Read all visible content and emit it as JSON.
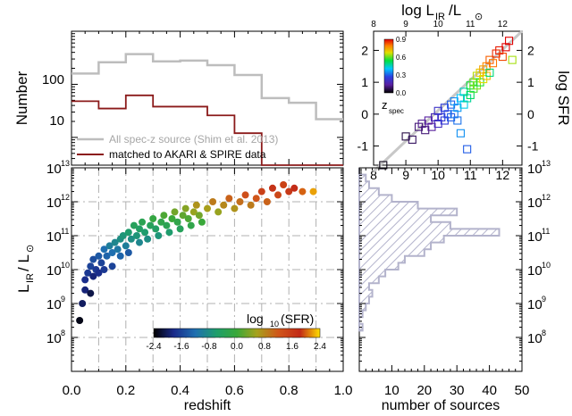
{
  "chart_data": [
    {
      "type": "histogram",
      "panel": "top-left",
      "ylabel": "Number",
      "y_scale": "log",
      "ylim": [
        3,
        1000
      ],
      "xlim": [
        0.0,
        1.0
      ],
      "y_ticks": [
        "100",
        "10"
      ],
      "bin_edges": [
        0.0,
        0.1,
        0.2,
        0.3,
        0.4,
        0.5,
        0.6,
        0.7,
        0.8,
        0.9,
        1.0
      ],
      "series": [
        {
          "name": "All spec-z source (Shim et al. 2013)",
          "color": "#bdbdbd",
          "values": [
            160,
            260,
            370,
            270,
            280,
            230,
            150,
            55,
            45,
            22
          ]
        },
        {
          "name": "matched to AKARI & SPIRE data",
          "color": "#8b1a1a",
          "values": [
            48,
            35,
            62,
            38,
            38,
            26,
            12,
            3,
            3,
            3
          ]
        }
      ],
      "legend_position": "bottom-left"
    },
    {
      "type": "scatter",
      "panel": "top-right",
      "xlabel": "log L",
      "xlabel_sub": "IR",
      "xlabel_tail": "/L",
      "xlabel_symbol": "⊙",
      "ylabel": "log SFR",
      "xlim": [
        8.0,
        12.6
      ],
      "ylim": [
        -1.6,
        2.6
      ],
      "x_ticks_top": [
        "8",
        "9",
        "10",
        "11",
        "12"
      ],
      "x_ticks_bottom": [
        "8",
        "9",
        "10",
        "11",
        "12"
      ],
      "y_ticks": [
        "2",
        "1",
        "0",
        "-1"
      ],
      "colorbar": {
        "label": "z",
        "label_sub": "spec",
        "ticks": [
          "0.9",
          "0.6",
          "0.3",
          "0.0"
        ],
        "range": [
          0.0,
          0.9
        ]
      },
      "one_to_one_line": true,
      "marker": "open-square",
      "points": [
        [
          8.3,
          -1.6,
          0.02
        ],
        [
          9.0,
          -0.7,
          0.06
        ],
        [
          9.2,
          -0.8,
          0.08
        ],
        [
          9.4,
          -0.4,
          0.1
        ],
        [
          9.5,
          -0.3,
          0.12
        ],
        [
          9.6,
          -0.5,
          0.1
        ],
        [
          9.7,
          -0.2,
          0.14
        ],
        [
          9.8,
          -0.4,
          0.13
        ],
        [
          9.9,
          -0.1,
          0.18
        ],
        [
          10.0,
          -0.3,
          0.2
        ],
        [
          10.0,
          0.1,
          0.22
        ],
        [
          10.1,
          -0.1,
          0.24
        ],
        [
          10.2,
          0.2,
          0.26
        ],
        [
          10.2,
          -0.2,
          0.25
        ],
        [
          10.3,
          0.0,
          0.28
        ],
        [
          10.4,
          0.3,
          0.3
        ],
        [
          10.4,
          -0.1,
          0.3
        ],
        [
          10.5,
          0.4,
          0.34
        ],
        [
          10.5,
          0.0,
          0.33
        ],
        [
          10.6,
          -0.2,
          0.32
        ],
        [
          10.6,
          0.2,
          0.36
        ],
        [
          10.7,
          0.5,
          0.4
        ],
        [
          10.7,
          -0.6,
          0.35
        ],
        [
          10.8,
          0.3,
          0.42
        ],
        [
          10.8,
          0.7,
          0.45
        ],
        [
          10.9,
          0.5,
          0.48
        ],
        [
          10.9,
          -1.1,
          0.3
        ],
        [
          11.0,
          0.9,
          0.55
        ],
        [
          11.0,
          0.6,
          0.52
        ],
        [
          11.1,
          1.0,
          0.6
        ],
        [
          11.1,
          0.8,
          0.58
        ],
        [
          11.2,
          1.2,
          0.65
        ],
        [
          11.2,
          0.9,
          0.62
        ],
        [
          11.3,
          1.3,
          0.7
        ],
        [
          11.3,
          1.0,
          0.56
        ],
        [
          11.4,
          1.4,
          0.75
        ],
        [
          11.4,
          1.1,
          0.68
        ],
        [
          11.5,
          1.5,
          0.78
        ],
        [
          11.5,
          1.2,
          0.72
        ],
        [
          11.6,
          1.7,
          0.82
        ],
        [
          11.6,
          1.3,
          0.5
        ],
        [
          11.7,
          1.6,
          0.8
        ],
        [
          11.8,
          1.9,
          0.86
        ],
        [
          11.9,
          2.0,
          0.88
        ],
        [
          12.0,
          1.8,
          0.84
        ],
        [
          12.1,
          2.1,
          0.9
        ],
        [
          12.2,
          2.3,
          0.9
        ],
        [
          12.3,
          1.7,
          0.64
        ]
      ]
    },
    {
      "type": "scatter",
      "panel": "bottom-left",
      "xlabel": "redshift",
      "ylabel": "L",
      "ylabel_sub": "IR",
      "ylabel_tail": "/ L",
      "ylabel_symbol": "⊙",
      "y_scale": "log",
      "xlim": [
        0.0,
        1.0
      ],
      "ylim": [
        10000000.0,
        10000000000000.0
      ],
      "x_ticks": [
        "0.0",
        "0.2",
        "0.4",
        "0.6",
        "0.8",
        "1.0"
      ],
      "y_tick_labels": [
        "10",
        "10",
        "10",
        "10",
        "10",
        "10"
      ],
      "y_tick_exponents": [
        "13",
        "12",
        "11",
        "10",
        "9",
        "8"
      ],
      "grid": true,
      "colorbar": {
        "label": "log",
        "label_sub": "10",
        "label_tail": "(SFR)",
        "ticks": [
          "-2.4",
          "-1.6",
          "-0.8",
          "0.0",
          "0.8",
          "1.6",
          "2.4"
        ],
        "range": [
          -2.4,
          2.4
        ]
      },
      "points": [
        [
          0.03,
          8.5,
          -2.3
        ],
        [
          0.04,
          9.0,
          -2.0
        ],
        [
          0.05,
          9.4,
          -1.9
        ],
        [
          0.05,
          9.7,
          -1.8
        ],
        [
          0.06,
          9.9,
          -1.7
        ],
        [
          0.07,
          9.3,
          -2.1
        ],
        [
          0.07,
          10.1,
          -1.6
        ],
        [
          0.08,
          9.8,
          -1.9
        ],
        [
          0.08,
          10.3,
          -1.5
        ],
        [
          0.09,
          10.0,
          -1.7
        ],
        [
          0.1,
          10.4,
          -1.4
        ],
        [
          0.1,
          9.9,
          -1.8
        ],
        [
          0.11,
          10.2,
          -1.6
        ],
        [
          0.12,
          10.6,
          -1.2
        ],
        [
          0.12,
          10.0,
          -1.7
        ],
        [
          0.13,
          10.4,
          -1.3
        ],
        [
          0.14,
          10.7,
          -1.0
        ],
        [
          0.15,
          10.5,
          -1.2
        ],
        [
          0.15,
          10.1,
          -1.6
        ],
        [
          0.16,
          10.8,
          -0.9
        ],
        [
          0.17,
          10.6,
          -1.1
        ],
        [
          0.18,
          10.9,
          -0.8
        ],
        [
          0.18,
          10.4,
          -1.3
        ],
        [
          0.19,
          11.0,
          -0.7
        ],
        [
          0.2,
          10.7,
          -1.0
        ],
        [
          0.21,
          11.1,
          -0.6
        ],
        [
          0.21,
          10.5,
          -1.4
        ],
        [
          0.22,
          10.9,
          -0.8
        ],
        [
          0.23,
          11.3,
          -0.4
        ],
        [
          0.24,
          11.0,
          -0.7
        ],
        [
          0.25,
          10.8,
          -0.9
        ],
        [
          0.25,
          11.2,
          -0.5
        ],
        [
          0.26,
          11.4,
          -0.3
        ],
        [
          0.27,
          11.1,
          -0.6
        ],
        [
          0.28,
          10.9,
          -0.8
        ],
        [
          0.29,
          11.3,
          -0.4
        ],
        [
          0.3,
          11.5,
          -0.1
        ],
        [
          0.31,
          11.2,
          -0.5
        ],
        [
          0.32,
          11.0,
          -0.7
        ],
        [
          0.33,
          11.4,
          -0.2
        ],
        [
          0.34,
          11.6,
          0.1
        ],
        [
          0.35,
          11.3,
          -0.3
        ],
        [
          0.36,
          11.1,
          -0.6
        ],
        [
          0.37,
          11.5,
          0.0
        ],
        [
          0.38,
          11.7,
          0.3
        ],
        [
          0.39,
          11.4,
          -0.2
        ],
        [
          0.4,
          11.2,
          -0.4
        ],
        [
          0.41,
          11.6,
          0.2
        ],
        [
          0.42,
          11.8,
          0.4
        ],
        [
          0.43,
          11.5,
          0.1
        ],
        [
          0.44,
          11.3,
          -0.2
        ],
        [
          0.45,
          11.7,
          0.5
        ],
        [
          0.46,
          11.9,
          0.7
        ],
        [
          0.47,
          11.6,
          0.3
        ],
        [
          0.48,
          11.4,
          0.0
        ],
        [
          0.5,
          11.8,
          0.6
        ],
        [
          0.52,
          12.0,
          0.9
        ],
        [
          0.54,
          11.7,
          0.5
        ],
        [
          0.56,
          11.9,
          0.8
        ],
        [
          0.58,
          12.1,
          1.1
        ],
        [
          0.6,
          11.8,
          0.7
        ],
        [
          0.62,
          12.0,
          1.0
        ],
        [
          0.64,
          12.2,
          1.3
        ],
        [
          0.66,
          11.9,
          0.9
        ],
        [
          0.68,
          12.1,
          1.2
        ],
        [
          0.7,
          12.3,
          1.5
        ],
        [
          0.72,
          12.0,
          1.1
        ],
        [
          0.74,
          12.4,
          1.7
        ],
        [
          0.76,
          12.2,
          1.4
        ],
        [
          0.78,
          12.5,
          1.9
        ],
        [
          0.8,
          12.3,
          1.6
        ],
        [
          0.82,
          12.4,
          1.8
        ],
        [
          0.85,
          12.3,
          2.0
        ],
        [
          0.89,
          12.3,
          2.2
        ]
      ]
    },
    {
      "type": "histogram-horizontal",
      "panel": "bottom-right",
      "xlabel": "number of sources",
      "xlim": [
        0,
        50
      ],
      "ylim": [
        7,
        13
      ],
      "x_ticks": [
        "10",
        "20",
        "30",
        "40",
        "50"
      ],
      "y_tick_labels": [
        "10",
        "10",
        "10",
        "10",
        "10",
        "10"
      ],
      "y_tick_exponents": [
        "13",
        "12",
        "11",
        "10",
        "9",
        "8"
      ],
      "fill": "hatched",
      "color": "#b3b3cc",
      "bin_edges_log": [
        8.2,
        8.4,
        8.6,
        8.8,
        9.0,
        9.2,
        9.4,
        9.6,
        9.8,
        10.0,
        10.2,
        10.4,
        10.6,
        10.8,
        11.0,
        11.2,
        11.4,
        11.6,
        11.8,
        12.0,
        12.2,
        12.4,
        12.6,
        12.8,
        13.0
      ],
      "counts": [
        1,
        0,
        1,
        2,
        3,
        4,
        3,
        6,
        8,
        12,
        14,
        20,
        22,
        26,
        43,
        28,
        22,
        30,
        18,
        10,
        6,
        3,
        2,
        0
      ]
    }
  ]
}
